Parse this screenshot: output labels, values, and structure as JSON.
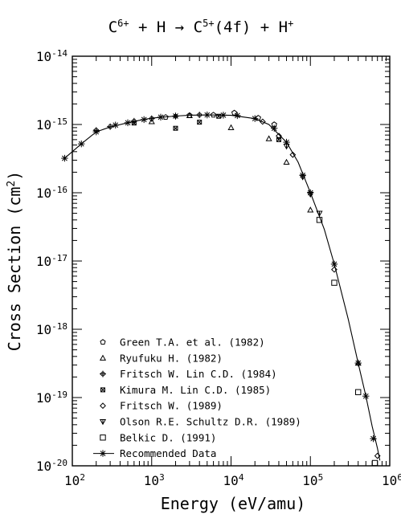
{
  "chart_data": {
    "type": "scatter",
    "title_parts": {
      "a": "C",
      "a_sup": "6+",
      "b": " + H → C",
      "b_sup": "5+",
      "c": "(4f) + H",
      "c_sup": "+"
    },
    "xlabel": "Energy (eV/amu)",
    "ylabel_base": "Cross Section (cm",
    "ylabel_sup": "2",
    "ylabel_end": ")",
    "xscale": "log",
    "yscale": "log",
    "xlim": [
      100,
      1000000
    ],
    "ylim": [
      1e-20,
      1e-14
    ],
    "grid": false,
    "legend_position": "bottom-left",
    "x_ticks": [
      {
        "value": 100,
        "base": "10",
        "exp": "2"
      },
      {
        "value": 1000,
        "base": "10",
        "exp": "3"
      },
      {
        "value": 10000,
        "base": "10",
        "exp": "4"
      },
      {
        "value": 100000,
        "base": "10",
        "exp": "5"
      },
      {
        "value": 1000000,
        "base": "10",
        "exp": "6"
      }
    ],
    "y_ticks": [
      {
        "value": 1e-20,
        "base": "10",
        "exp": "-20"
      },
      {
        "value": 1e-19,
        "base": "10",
        "exp": "-19"
      },
      {
        "value": 1e-18,
        "base": "10",
        "exp": "-18"
      },
      {
        "value": 1e-17,
        "base": "10",
        "exp": "-17"
      },
      {
        "value": 1e-16,
        "base": "10",
        "exp": "-16"
      },
      {
        "value": 1e-15,
        "base": "10",
        "exp": "-15"
      },
      {
        "value": 1e-14,
        "base": "10",
        "exp": "-14"
      }
    ],
    "fit_curve": [
      [
        80,
        3.2e-16
      ],
      [
        100,
        4e-16
      ],
      [
        130,
        5.2e-16
      ],
      [
        200,
        7.8e-16
      ],
      [
        300,
        9.2e-16
      ],
      [
        500,
        1.06e-15
      ],
      [
        700,
        1.15e-15
      ],
      [
        1000,
        1.24e-15
      ],
      [
        2000,
        1.33e-15
      ],
      [
        3000,
        1.37e-15
      ],
      [
        5000,
        1.38e-15
      ],
      [
        10000,
        1.36e-15
      ],
      [
        20000,
        1.22e-15
      ],
      [
        30000,
        1e-15
      ],
      [
        50000,
        5.5e-16
      ],
      [
        70000,
        2.8e-16
      ],
      [
        100000,
        1e-16
      ],
      [
        150000,
        2.9e-17
      ],
      [
        200000,
        9e-18
      ],
      [
        300000,
        1.4e-18
      ],
      [
        400000,
        3.2e-19
      ],
      [
        500000,
        1.05e-19
      ],
      [
        600000,
        3.8e-20
      ],
      [
        700000,
        1.8e-20
      ],
      [
        750000,
        1.2e-20
      ]
    ],
    "series": [
      {
        "name": "Green T.A. et al. (1982)",
        "marker": "pentagon",
        "points": [
          [
            1500,
            1.28e-15
          ],
          [
            3000,
            1.36e-15
          ],
          [
            6000,
            1.38e-15
          ],
          [
            11000,
            1.48e-15
          ],
          [
            22000,
            1.25e-15
          ],
          [
            35000,
            1e-15
          ]
        ]
      },
      {
        "name": "Ryufuku H. (1982)",
        "marker": "triangle-up",
        "points": [
          [
            1000,
            1.1e-15
          ],
          [
            3000,
            1.35e-15
          ],
          [
            10000,
            9e-16
          ],
          [
            30000,
            6.2e-16
          ],
          [
            50000,
            2.8e-16
          ],
          [
            100000,
            5.6e-17
          ],
          [
            400000,
            3.2e-19
          ]
        ]
      },
      {
        "name": "Fritsch W. Lin C.D. (1984)",
        "marker": "plus-circle",
        "points": [
          [
            200,
            8.2e-16
          ],
          [
            300,
            9.3e-16
          ],
          [
            600,
            1.12e-15
          ],
          [
            1000,
            1.22e-15
          ],
          [
            2000,
            1.32e-15
          ],
          [
            4000,
            1.38e-15
          ]
        ]
      },
      {
        "name": "Kimura M. Lin C.D. (1985)",
        "marker": "x-box",
        "points": [
          [
            600,
            1.05e-15
          ],
          [
            2000,
            8.8e-16
          ],
          [
            4000,
            1.08e-15
          ],
          [
            7000,
            1.32e-15
          ],
          [
            40000,
            6e-16
          ]
        ]
      },
      {
        "name": "Fritsch W. (1989)",
        "marker": "diamond",
        "points": [
          [
            25000,
            1.1e-15
          ],
          [
            40000,
            6.8e-16
          ],
          [
            60000,
            3.6e-16
          ],
          [
            200000,
            7.5e-18
          ],
          [
            700000,
            1.4e-20
          ]
        ]
      },
      {
        "name": "Olson R.E. Schultz D.R. (1989)",
        "marker": "triangle-down",
        "points": [
          [
            50000,
            4.8e-16
          ],
          [
            80000,
            1.7e-16
          ],
          [
            100000,
            9.5e-17
          ],
          [
            130000,
            5e-17
          ]
        ]
      },
      {
        "name": "Belkic D. (1991)",
        "marker": "square",
        "points": [
          [
            130000,
            4e-17
          ],
          [
            200000,
            4.8e-18
          ],
          [
            400000,
            1.2e-19
          ],
          [
            650000,
            1.1e-20
          ]
        ]
      },
      {
        "name": "Recommended Data",
        "marker": "asterisk-line",
        "points": [
          [
            80,
            3.2e-16
          ],
          [
            130,
            5.2e-16
          ],
          [
            200,
            7.8e-16
          ],
          [
            350,
            9.8e-16
          ],
          [
            500,
            1.06e-15
          ],
          [
            800,
            1.18e-15
          ],
          [
            1300,
            1.28e-15
          ],
          [
            2000,
            1.33e-15
          ],
          [
            5000,
            1.38e-15
          ],
          [
            8000,
            1.37e-15
          ],
          [
            12000,
            1.35e-15
          ],
          [
            20000,
            1.22e-15
          ],
          [
            35000,
            8.8e-16
          ],
          [
            50000,
            5.5e-16
          ],
          [
            80000,
            1.8e-16
          ],
          [
            100000,
            1e-16
          ],
          [
            200000,
            9e-18
          ],
          [
            400000,
            3.2e-19
          ],
          [
            500000,
            1.05e-19
          ],
          [
            620000,
            2.5e-20
          ]
        ]
      }
    ]
  }
}
